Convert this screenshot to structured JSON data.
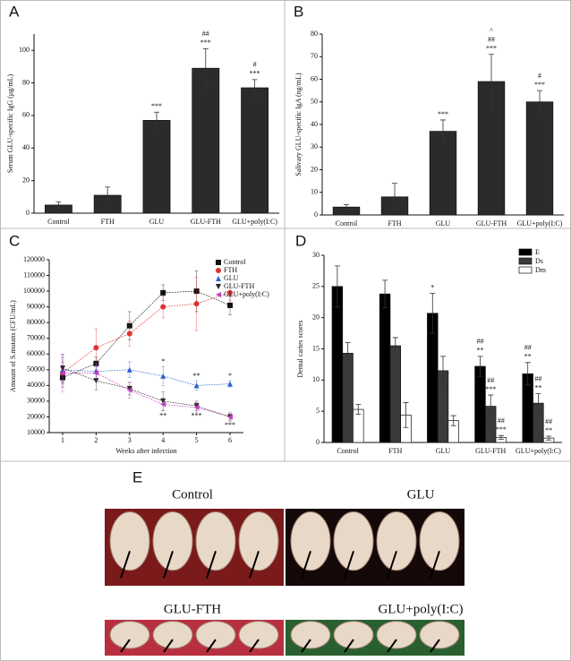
{
  "chart_data": [
    {
      "type": "bar",
      "panel_label": "A",
      "ylabel": "Serum GLU-specific IgG (μg/mL)",
      "categories": [
        "Control",
        "FTH",
        "GLU",
        "GLU-FTH",
        "GLU+poly(I:C)"
      ],
      "series": [
        {
          "color": "#2b2b2b",
          "values": [
            5,
            11,
            57,
            89,
            77
          ],
          "errors": [
            2,
            5,
            5,
            12,
            5
          ],
          "annotations": [
            null,
            null,
            [
              "***"
            ],
            [
              "##",
              "***"
            ],
            [
              "#",
              "***"
            ]
          ]
        }
      ],
      "ylim": [
        0,
        110
      ],
      "yticks": [
        0,
        20,
        40,
        60,
        80,
        100
      ]
    },
    {
      "type": "bar",
      "panel_label": "B",
      "ylabel": "Salivary GLU-specific IgA (ng/mL)",
      "categories": [
        "Control",
        "FTH",
        "GLU",
        "GLU-FTH",
        "GLU+poly(I:C)"
      ],
      "series": [
        {
          "color": "#2b2b2b",
          "values": [
            3.5,
            8,
            37,
            59,
            50
          ],
          "errors": [
            1,
            6,
            5,
            12,
            5
          ],
          "annotations": [
            null,
            null,
            [
              "***"
            ],
            [
              "^",
              "##",
              "***"
            ],
            [
              "#",
              "***"
            ]
          ]
        }
      ],
      "ylim": [
        0,
        80
      ],
      "yticks": [
        0,
        10,
        20,
        30,
        40,
        50,
        60,
        70,
        80
      ]
    },
    {
      "type": "line",
      "panel_label": "C",
      "xlabel": "Weeks after infection",
      "ylabel": "Amount of S.mutans (CFU/mL)",
      "x": [
        1,
        2,
        3,
        4,
        5,
        6
      ],
      "xlim": [
        0.6,
        6.4
      ],
      "xticks": [
        1,
        2,
        3,
        4,
        5,
        6
      ],
      "ylim": [
        10000,
        120000
      ],
      "yticks": [
        10000,
        20000,
        30000,
        40000,
        50000,
        60000,
        70000,
        80000,
        90000,
        100000,
        110000,
        120000
      ],
      "legend": "upper right",
      "series": [
        {
          "name": "Control",
          "color": "#111111",
          "marker": "square",
          "values": [
            45000,
            54000,
            78000,
            99000,
            100000,
            91000
          ],
          "errors": [
            6000,
            4000,
            9000,
            5000,
            13000,
            6000
          ]
        },
        {
          "name": "FTH",
          "color": "#e03030",
          "marker": "circle",
          "values": [
            48000,
            64000,
            73000,
            90000,
            92000,
            99000
          ],
          "errors": [
            7000,
            12000,
            8000,
            7000,
            17000,
            5000
          ]
        },
        {
          "name": "GLU",
          "color": "#3060d0",
          "marker": "triangle-up",
          "values": [
            50000,
            49000,
            50000,
            46000,
            40000,
            41000
          ],
          "errors": [
            8000,
            5000,
            5000,
            6000,
            3000,
            2000
          ],
          "annotations": [
            null,
            null,
            null,
            "*",
            "**",
            "*"
          ]
        },
        {
          "name": "GLU-FTH",
          "color": "#222222",
          "marker": "triangle-down",
          "values": [
            51000,
            43000,
            38000,
            30000,
            27000,
            20000
          ],
          "errors": [
            9000,
            6000,
            4000,
            6000,
            3000,
            2000
          ],
          "annotations": [
            null,
            null,
            null,
            "**",
            "***",
            "***"
          ]
        },
        {
          "name": "GLU+poly(I:C)",
          "color": "#c040c0",
          "marker": "triangle-left",
          "values": [
            48000,
            48000,
            37000,
            28000,
            26000,
            20000
          ],
          "errors": [
            12000,
            5000,
            5000,
            4000,
            3000,
            3000
          ]
        }
      ]
    },
    {
      "type": "bar",
      "panel_label": "D",
      "ylabel": "Dental caries scores",
      "categories": [
        "Control",
        "FTH",
        "GLU",
        "GLU-FTH",
        "GLU+poly(I:C)"
      ],
      "ylim": [
        0,
        30
      ],
      "yticks": [
        0,
        5,
        10,
        15,
        20,
        25,
        30
      ],
      "legend": "upper right",
      "series": [
        {
          "name": "E",
          "color": "#000000",
          "values": [
            25,
            23.8,
            20.7,
            12.2,
            11
          ],
          "errors": [
            3.3,
            2.2,
            3.2,
            1.6,
            1.8
          ],
          "annotations": [
            null,
            null,
            [
              "*"
            ],
            [
              "##",
              "**"
            ],
            [
              "##",
              "**"
            ]
          ]
        },
        {
          "name": "Ds",
          "color": "#3a3a3a",
          "values": [
            14.3,
            15.5,
            11.5,
            5.8,
            6.3
          ],
          "errors": [
            1.7,
            1.3,
            2.3,
            1.8,
            1.5
          ],
          "annotations": [
            null,
            null,
            null,
            [
              "##",
              "***"
            ],
            [
              "##",
              "**"
            ]
          ]
        },
        {
          "name": "Dm",
          "color": "#ffffff",
          "values": [
            5.3,
            4.4,
            3.5,
            0.8,
            0.7
          ],
          "errors": [
            0.8,
            2,
            0.8,
            0.3,
            0.3
          ],
          "annotations": [
            null,
            null,
            null,
            [
              "##",
              "***"
            ],
            [
              "##",
              "**"
            ]
          ]
        }
      ]
    }
  ],
  "panel_e": {
    "label": "E",
    "images": [
      {
        "caption": "Control"
      },
      {
        "caption": "GLU"
      },
      {
        "caption": "GLU-FTH"
      },
      {
        "caption": "GLU+poly(I:C)"
      }
    ]
  }
}
